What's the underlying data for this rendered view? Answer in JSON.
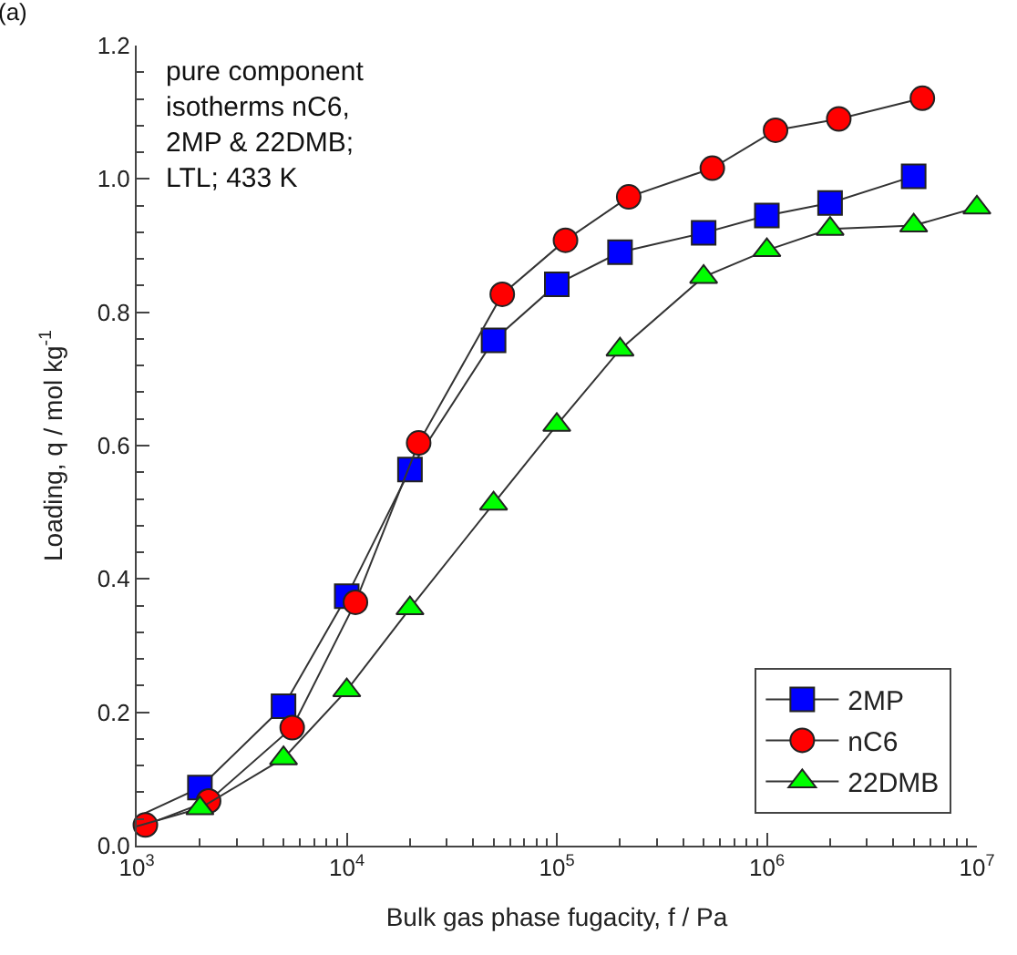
{
  "chart_data": {
    "type": "line",
    "xlabel": "Bulk gas phase fugacity, f / Pa",
    "ylabel": "Loading, q / mol kg$^{-1}$",
    "annotations": [
      "(a)",
      "pure component\nisotherms nC6,\n2MP & 22DMB;\nLTL; 433 K"
    ],
    "log": "x",
    "xlim": [
      1000,
      10000000
    ],
    "xticks": [
      {
        "value": 1000,
        "label": "10$^{3}$"
      },
      {
        "value": 10000,
        "label": "10$^{4}$"
      },
      {
        "value": 100000,
        "label": "10$^{5}$"
      },
      {
        "value": 1000000,
        "label": "10$^{6}$"
      },
      {
        "value": 10000000,
        "label": "10$^{7}$"
      }
    ],
    "ylim": [
      0,
      1.2
    ],
    "yticks": [
      {
        "value": 0,
        "label": "0.0"
      },
      0.2,
      0.4,
      0.6,
      0.8,
      {
        "value": 1.0,
        "label": "1.0"
      },
      1.2
    ],
    "legend": "bottom right",
    "series": [
      {
        "name": "2MP",
        "color": "#0000ff",
        "marker": "square",
        "x": [
          1000,
          2000,
          5000,
          10000,
          20000,
          50000,
          100000,
          200000,
          500000,
          1000000,
          2000000,
          5000000
        ],
        "values": [
          0.043,
          0.087,
          0.209,
          0.374,
          0.564,
          0.758,
          0.842,
          0.89,
          0.919,
          0.945,
          0.964,
          1.004
        ]
      },
      {
        "name": "nC6",
        "color": "#ff0000",
        "marker": "circle",
        "x": [
          1100,
          2200,
          5500,
          11000,
          22000,
          55000,
          110000,
          220000,
          550000,
          1100000,
          2200000,
          5500000
        ],
        "values": [
          0.031,
          0.067,
          0.177,
          0.365,
          0.604,
          0.827,
          0.908,
          0.973,
          1.016,
          1.073,
          1.09,
          1.121
        ]
      },
      {
        "name": "22DMB",
        "color": "#00ff00",
        "marker": "triangle",
        "x": [
          1000,
          2000,
          5000,
          10000,
          20000,
          50000,
          100000,
          200000,
          500000,
          1000000,
          2000000,
          5000000,
          10000000
        ],
        "values": [
          0.029,
          0.056,
          0.131,
          0.233,
          0.356,
          0.513,
          0.631,
          0.744,
          0.853,
          0.893,
          0.925,
          0.93,
          0.957
        ]
      }
    ]
  }
}
